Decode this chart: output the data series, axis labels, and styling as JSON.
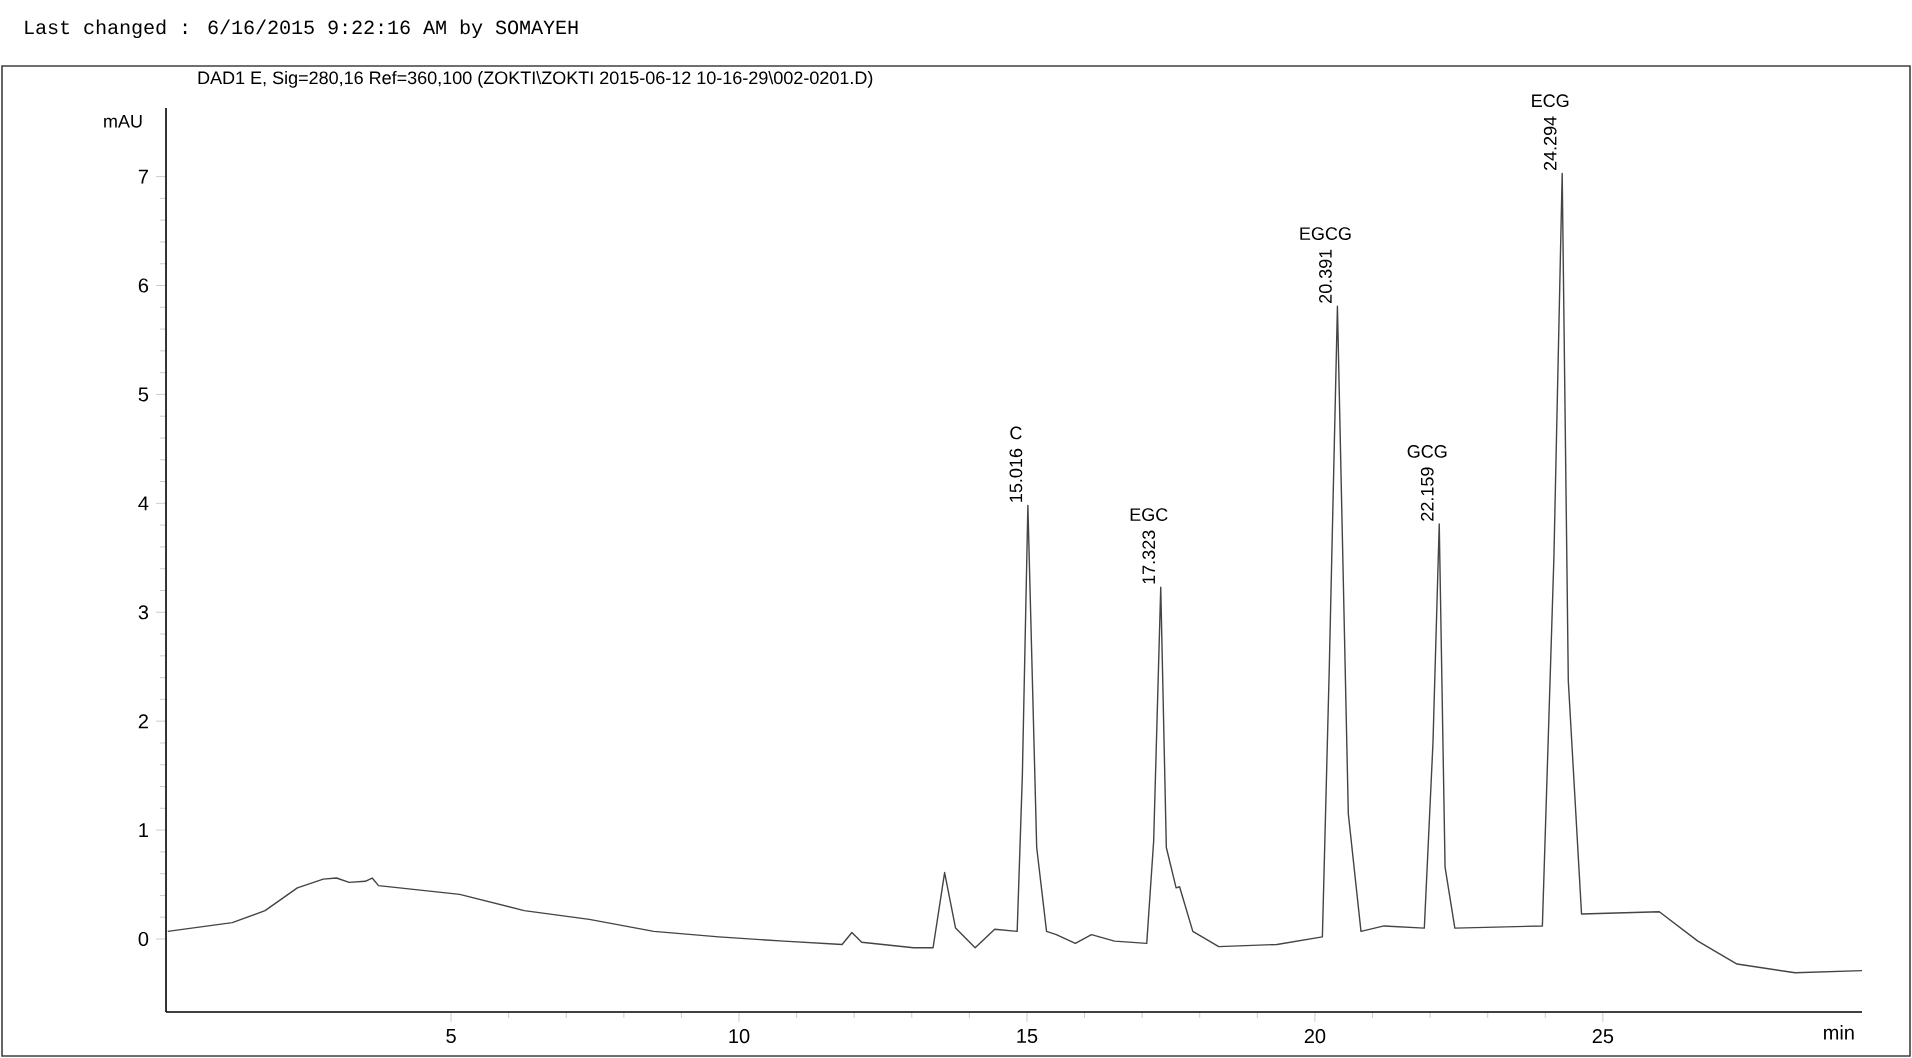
{
  "chart_data": {
    "type": "line",
    "title": "DAD1 E, Sig=280,16 Ref=360,100 (ZOKTI\\ZOKTI 2015-06-12 10-16-29\\002-0201.D)",
    "xlabel": "min",
    "ylabel": "mAU",
    "color": "#444444",
    "x": [
      0.08,
      1.2,
      1.77,
      2.33,
      2.78,
      3.01,
      3.23,
      3.51,
      3.63,
      3.74,
      5.15,
      6.27,
      7.4,
      8.52,
      9.65,
      10.78,
      11.79,
      11.96,
      12.13,
      13.03,
      13.37,
      13.57,
      13.76,
      14.1,
      14.44,
      14.83,
      14.92,
      15.016,
      15.169,
      15.34,
      15.51,
      15.84,
      16.12,
      16.52,
      17.08,
      17.2,
      17.323,
      17.42,
      17.59,
      17.65,
      17.88,
      18.33,
      19.34,
      20.13,
      20.25,
      20.391,
      20.58,
      20.8,
      21.2,
      21.9,
      22.05,
      22.159,
      22.26,
      22.43,
      23.95,
      24.15,
      24.294,
      24.4,
      24.63,
      25.98,
      26.65,
      27.33,
      28.34,
      29.5
    ],
    "values": [
      0.07,
      0.15,
      0.26,
      0.47,
      0.55,
      0.56,
      0.52,
      0.53,
      0.56,
      0.49,
      0.41,
      0.26,
      0.18,
      0.07,
      0.02,
      -0.02,
      -0.05,
      0.06,
      -0.03,
      -0.08,
      -0.08,
      0.61,
      0.1,
      -0.08,
      0.09,
      0.07,
      1.5,
      3.98,
      0.84,
      0.07,
      0.04,
      -0.04,
      0.04,
      -0.02,
      -0.04,
      0.9,
      3.23,
      0.84,
      0.47,
      0.48,
      0.07,
      -0.07,
      -0.05,
      0.02,
      2.5,
      5.81,
      1.15,
      0.07,
      0.12,
      0.1,
      1.8,
      3.81,
      0.66,
      0.1,
      0.12,
      3.5,
      7.03,
      2.37,
      0.23,
      0.25,
      -0.02,
      -0.23,
      -0.31,
      -0.29
    ],
    "xlim": [
      0.05,
      29.5
    ],
    "ylim": [
      -0.67,
      7.63
    ],
    "xticks": [
      5,
      10,
      15,
      20,
      25
    ],
    "yticks": [
      0,
      1,
      2,
      3,
      4,
      5,
      6,
      7
    ],
    "annotations": [
      "Last changed    : 6/16/2015 9:22:16 AM by SOMAYEH",
      {
        "text": "15.016",
        "x": 15.016,
        "y": 3.98
      },
      "C",
      {
        "text": "17.323",
        "x": 17.323,
        "y": 3.23
      },
      "EGC",
      {
        "text": "20.391",
        "x": 20.391,
        "y": 5.81
      },
      "EGCG",
      {
        "text": "22.159",
        "x": 22.159,
        "y": 3.81
      },
      "GCG",
      {
        "text": "24.294",
        "x": 24.294,
        "y": 7.03
      },
      "ECG"
    ]
  }
}
